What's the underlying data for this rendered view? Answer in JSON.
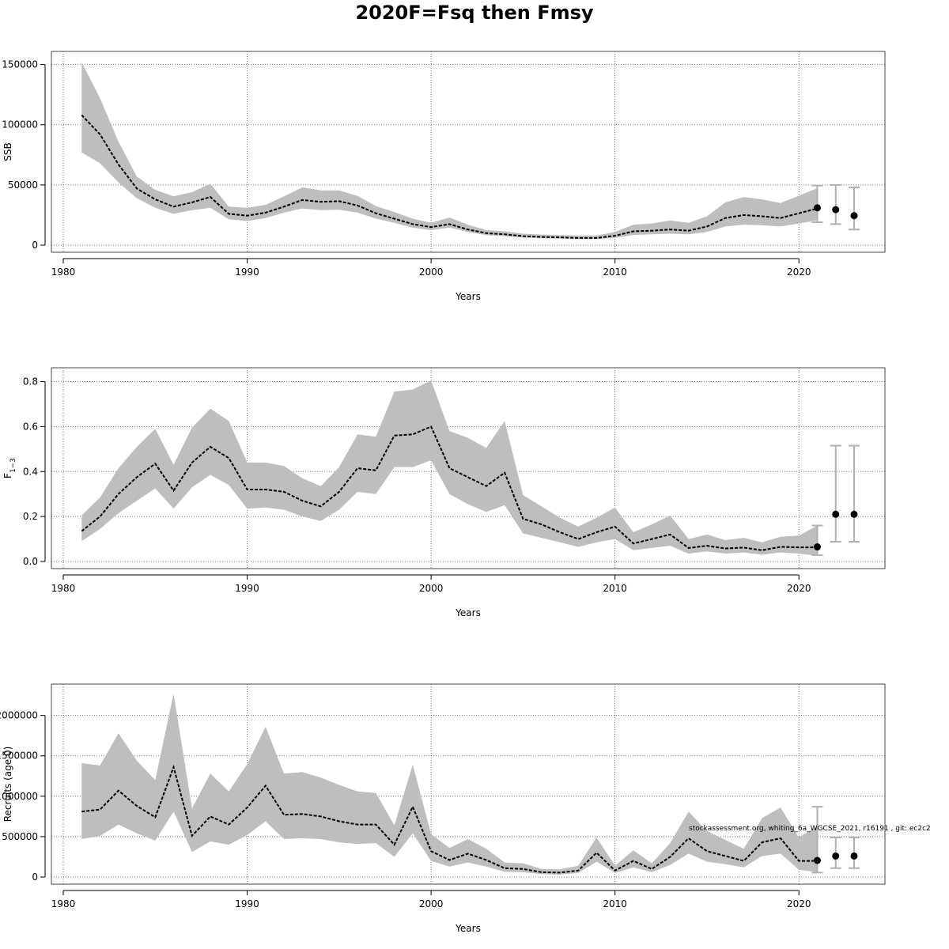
{
  "title": "2020F=Fsq then Fmsy",
  "footnote": "stockassessment.org, whiting_6a_WGCSE_2021, r16191 , git: ec2c2",
  "chart_data": [
    {
      "type": "line",
      "name": "ssb",
      "xlabel": "Years",
      "ylabel": "SSB",
      "ylabel_sub": "",
      "xlim": [
        1980,
        2024
      ],
      "ylim": [
        0,
        155000
      ],
      "xticks": [
        "1980",
        "1990",
        "2000",
        "2010",
        "2020"
      ],
      "yticks": [
        "0",
        "50000",
        "100000",
        "150000"
      ],
      "grid": true,
      "x": [
        1981,
        1982,
        1983,
        1984,
        1985,
        1986,
        1987,
        1988,
        1989,
        1990,
        1991,
        1992,
        1993,
        1994,
        1995,
        1996,
        1997,
        1998,
        1999,
        2000,
        2001,
        2002,
        2003,
        2004,
        2005,
        2006,
        2007,
        2008,
        2009,
        2010,
        2011,
        2012,
        2013,
        2014,
        2015,
        2016,
        2017,
        2018,
        2019,
        2020,
        2021
      ],
      "estimate": [
        108000,
        92000,
        67000,
        47000,
        38000,
        32000,
        35500,
        40000,
        26000,
        24500,
        27000,
        32000,
        37500,
        36000,
        36500,
        33000,
        26500,
        22000,
        17500,
        15000,
        17500,
        13000,
        10000,
        9000,
        7500,
        6800,
        6500,
        6000,
        6000,
        7800,
        11500,
        12000,
        13000,
        12000,
        15500,
        22500,
        25000,
        24000,
        22500,
        26500,
        30500
      ],
      "lower": [
        77000,
        68000,
        52000,
        39000,
        31000,
        26000,
        29000,
        31000,
        21500,
        20000,
        22500,
        27000,
        30500,
        29000,
        29500,
        27000,
        22000,
        18500,
        14500,
        12500,
        14500,
        11000,
        8300,
        7500,
        6300,
        5700,
        5400,
        5000,
        5000,
        6000,
        8500,
        9000,
        9500,
        9000,
        11000,
        15500,
        17000,
        16500,
        15500,
        18000,
        20500
      ],
      "upper": [
        152000,
        122000,
        86000,
        57000,
        46000,
        40500,
        44000,
        51000,
        32000,
        31000,
        33500,
        40500,
        48000,
        45500,
        45500,
        41000,
        32500,
        27500,
        22000,
        18500,
        23000,
        17000,
        12500,
        11500,
        9500,
        8800,
        8400,
        8000,
        8000,
        11000,
        17000,
        18000,
        20500,
        18500,
        24000,
        35500,
        40000,
        38000,
        35000,
        41000,
        47500
      ],
      "forecast": {
        "x": [
          2021,
          2022,
          2023
        ],
        "values": [
          31000,
          29500,
          24500
        ],
        "lower": [
          19000,
          17500,
          13000
        ],
        "upper": [
          49500,
          50000,
          48000
        ]
      }
    },
    {
      "type": "line",
      "name": "fbar",
      "xlabel": "Years",
      "ylabel": "F",
      "ylabel_sub": "1−3",
      "xlim": [
        1980,
        2024
      ],
      "ylim": [
        0,
        0.83
      ],
      "xticks": [
        "1980",
        "1990",
        "2000",
        "2010",
        "2020"
      ],
      "yticks": [
        "0.0",
        "0.2",
        "0.4",
        "0.6",
        "0.8"
      ],
      "grid": true,
      "x": [
        1981,
        1982,
        1983,
        1984,
        1985,
        1986,
        1987,
        1988,
        1989,
        1990,
        1991,
        1992,
        1993,
        1994,
        1995,
        1996,
        1997,
        1998,
        1999,
        2000,
        2001,
        2002,
        2003,
        2004,
        2005,
        2006,
        2007,
        2008,
        2009,
        2010,
        2011,
        2012,
        2013,
        2014,
        2015,
        2016,
        2017,
        2018,
        2019,
        2020,
        2021
      ],
      "estimate": [
        0.135,
        0.2,
        0.3,
        0.375,
        0.435,
        0.315,
        0.44,
        0.51,
        0.46,
        0.32,
        0.32,
        0.31,
        0.27,
        0.245,
        0.31,
        0.415,
        0.405,
        0.56,
        0.565,
        0.6,
        0.415,
        0.375,
        0.335,
        0.395,
        0.19,
        0.165,
        0.13,
        0.1,
        0.13,
        0.155,
        0.08,
        0.1,
        0.12,
        0.06,
        0.07,
        0.058,
        0.062,
        0.05,
        0.065,
        0.063,
        0.063
      ],
      "lower": [
        0.09,
        0.145,
        0.215,
        0.27,
        0.325,
        0.235,
        0.33,
        0.385,
        0.34,
        0.235,
        0.24,
        0.23,
        0.2,
        0.18,
        0.23,
        0.31,
        0.3,
        0.42,
        0.42,
        0.45,
        0.3,
        0.255,
        0.22,
        0.25,
        0.125,
        0.105,
        0.085,
        0.065,
        0.085,
        0.1,
        0.05,
        0.06,
        0.07,
        0.035,
        0.045,
        0.035,
        0.04,
        0.03,
        0.04,
        0.035,
        0.025
      ],
      "upper": [
        0.205,
        0.285,
        0.415,
        0.51,
        0.59,
        0.43,
        0.595,
        0.68,
        0.625,
        0.44,
        0.44,
        0.425,
        0.37,
        0.335,
        0.42,
        0.565,
        0.555,
        0.755,
        0.765,
        0.805,
        0.58,
        0.55,
        0.505,
        0.625,
        0.295,
        0.245,
        0.195,
        0.155,
        0.195,
        0.24,
        0.13,
        0.165,
        0.205,
        0.1,
        0.12,
        0.095,
        0.105,
        0.085,
        0.11,
        0.115,
        0.16
      ],
      "forecast": {
        "x": [
          2021,
          2022,
          2023
        ],
        "values": [
          0.065,
          0.21,
          0.21
        ],
        "lower": [
          0.028,
          0.088,
          0.088
        ],
        "upper": [
          0.16,
          0.515,
          0.515
        ]
      }
    },
    {
      "type": "line",
      "name": "recruits",
      "xlabel": "Years",
      "ylabel": "Recruits (age 0)",
      "ylabel_sub": "",
      "xlim": [
        1980,
        2024
      ],
      "ylim": [
        0,
        2300000
      ],
      "xticks": [
        "1980",
        "1990",
        "2000",
        "2010",
        "2020"
      ],
      "yticks": [
        "0",
        "500000",
        "1000000",
        "1500000",
        "2000000"
      ],
      "grid": true,
      "x": [
        1981,
        1982,
        1983,
        1984,
        1985,
        1986,
        1987,
        1988,
        1989,
        1990,
        1991,
        1992,
        1993,
        1994,
        1995,
        1996,
        1997,
        1998,
        1999,
        2000,
        2001,
        2002,
        2003,
        2004,
        2005,
        2006,
        2007,
        2008,
        2009,
        2010,
        2011,
        2012,
        2013,
        2014,
        2015,
        2016,
        2017,
        2018,
        2019,
        2020,
        2021
      ],
      "estimate": [
        810000,
        835000,
        1070000,
        880000,
        740000,
        1360000,
        510000,
        750000,
        650000,
        860000,
        1130000,
        770000,
        780000,
        750000,
        690000,
        650000,
        650000,
        400000,
        870000,
        320000,
        210000,
        290000,
        210000,
        110000,
        100000,
        60000,
        55000,
        80000,
        300000,
        80000,
        200000,
        100000,
        250000,
        480000,
        320000,
        260000,
        200000,
        430000,
        480000,
        200000,
        200000
      ],
      "lower": [
        470000,
        510000,
        650000,
        540000,
        450000,
        810000,
        310000,
        440000,
        400000,
        520000,
        690000,
        470000,
        480000,
        470000,
        430000,
        410000,
        420000,
        250000,
        540000,
        200000,
        130000,
        180000,
        130000,
        65000,
        60000,
        35000,
        30000,
        50000,
        190000,
        50000,
        120000,
        60000,
        150000,
        290000,
        190000,
        160000,
        120000,
        260000,
        290000,
        90000,
        60000
      ],
      "upper": [
        1410000,
        1380000,
        1780000,
        1440000,
        1200000,
        2270000,
        850000,
        1280000,
        1060000,
        1400000,
        1860000,
        1280000,
        1300000,
        1230000,
        1140000,
        1060000,
        1040000,
        640000,
        1390000,
        530000,
        360000,
        470000,
        350000,
        180000,
        170000,
        100000,
        95000,
        140000,
        490000,
        140000,
        330000,
        170000,
        420000,
        810000,
        570000,
        460000,
        350000,
        730000,
        860000,
        490000,
        630000
      ],
      "forecast": {
        "x": [
          2021,
          2022,
          2023
        ],
        "values": [
          205000,
          260000,
          260000
        ],
        "lower": [
          55000,
          110000,
          110000
        ],
        "upper": [
          870000,
          490000,
          490000
        ]
      }
    }
  ]
}
